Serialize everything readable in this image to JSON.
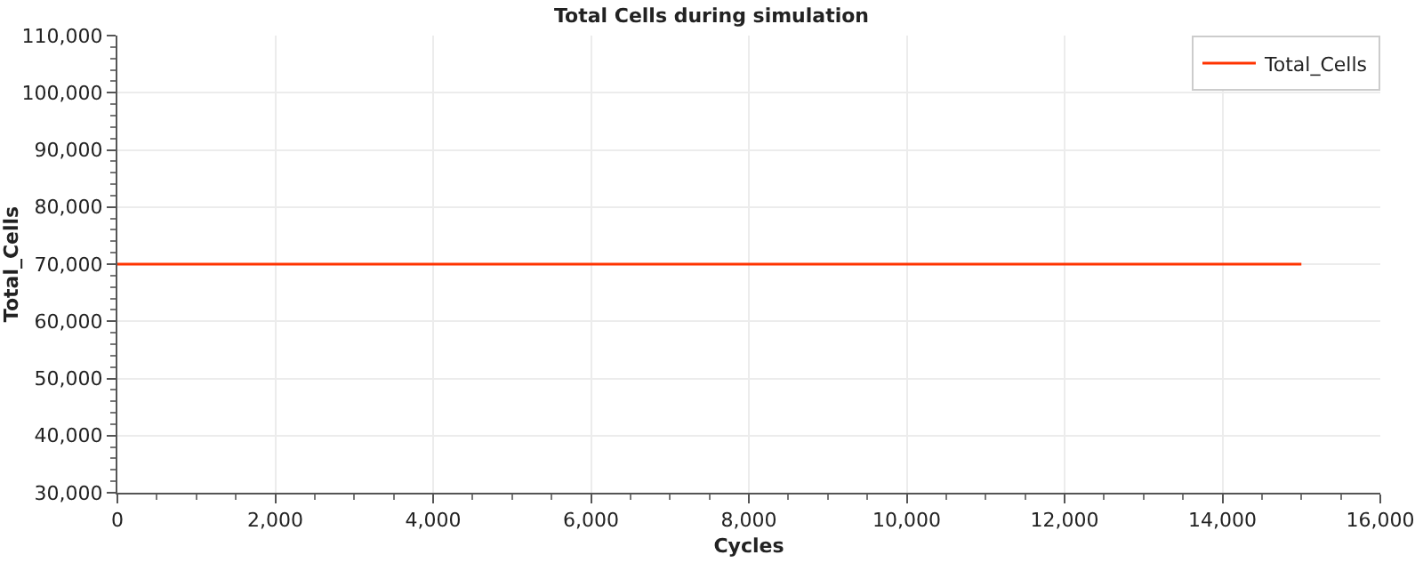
{
  "chart_data": {
    "type": "line",
    "title": "Total Cells during simulation",
    "xlabel": "Cycles",
    "ylabel": "Total_Cells",
    "x": [
      0,
      15000
    ],
    "series": [
      {
        "name": "Total_Cells",
        "color": "#ff3300",
        "values": [
          70000,
          70000
        ]
      }
    ],
    "xlim": [
      0,
      16000
    ],
    "xticks": [
      {
        "value": 0,
        "label": "0"
      },
      {
        "value": 2000,
        "label": "2,000"
      },
      {
        "value": 4000,
        "label": "4,000"
      },
      {
        "value": 6000,
        "label": "6,000"
      },
      {
        "value": 8000,
        "label": "8,000"
      },
      {
        "value": 10000,
        "label": "10,000"
      },
      {
        "value": 12000,
        "label": "12,000"
      },
      {
        "value": 14000,
        "label": "14,000"
      },
      {
        "value": 16000,
        "label": "16,000"
      }
    ],
    "ylim": [
      30000,
      110000
    ],
    "yticks": [
      {
        "value": 30000,
        "label": "30,000"
      },
      {
        "value": 40000,
        "label": "40,000"
      },
      {
        "value": 50000,
        "label": "50,000"
      },
      {
        "value": 60000,
        "label": "60,000"
      },
      {
        "value": 70000,
        "label": "70,000"
      },
      {
        "value": 80000,
        "label": "80,000"
      },
      {
        "value": 90000,
        "label": "90,000"
      },
      {
        "value": 100000,
        "label": "100,000"
      },
      {
        "value": 110000,
        "label": "110,000"
      }
    ],
    "grid": true,
    "legend": "top right",
    "marker": "none",
    "line_style": "solid"
  }
}
